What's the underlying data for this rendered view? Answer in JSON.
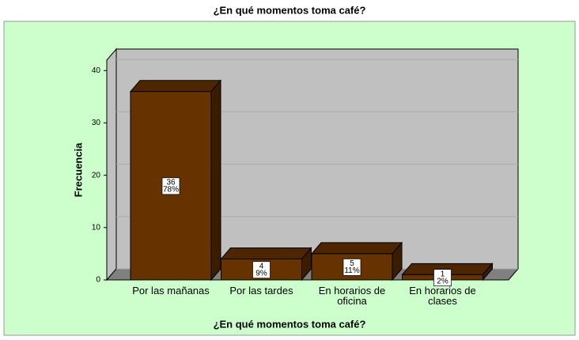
{
  "chart_data": {
    "type": "bar3d",
    "title": "¿En qué momentos toma café?",
    "x_label": "¿En qué momentos toma café?",
    "y_label": "Frecuencia",
    "categories": [
      "Por las mañanas",
      "Por las tardes",
      "En horarios de oficina",
      "En horarios de clases"
    ],
    "values": [
      36,
      4,
      5,
      1
    ],
    "value_labels": [
      "36",
      "4",
      "5",
      "1"
    ],
    "percent_labels": [
      "78%",
      "9%",
      "11%",
      "2%"
    ],
    "color": "#663300",
    "ylim": [
      0,
      42
    ],
    "yticks": [
      0,
      10,
      20,
      30,
      40
    ],
    "grid": true
  }
}
